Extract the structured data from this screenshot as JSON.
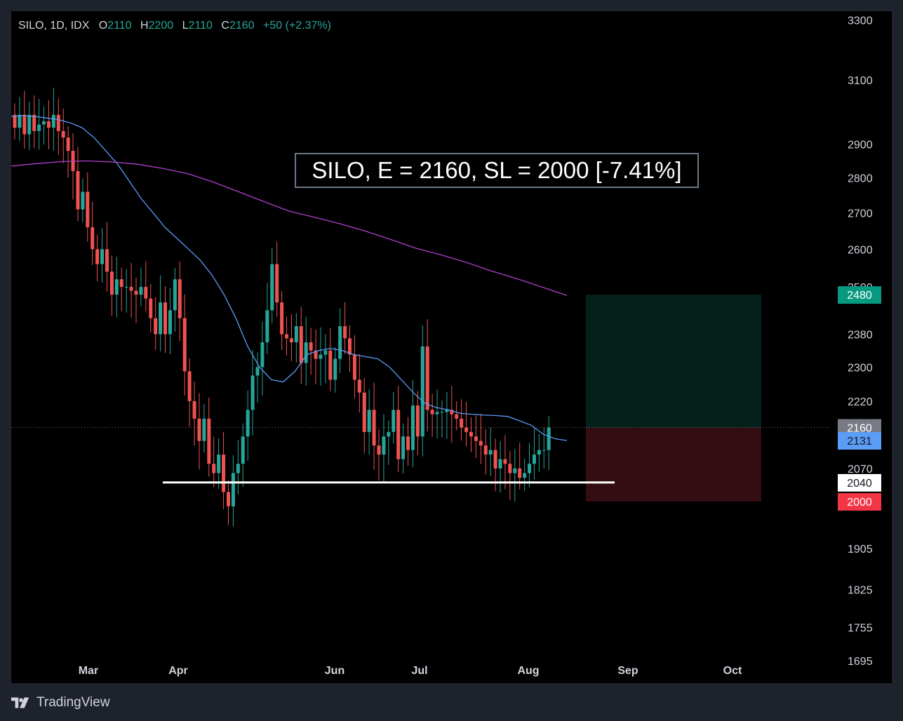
{
  "legend": {
    "symbol": "SILO, 1D, IDX",
    "open_label": "O",
    "open": "2110",
    "high_label": "H",
    "high": "2200",
    "low_label": "L",
    "low": "2110",
    "close_label": "C",
    "close": "2160",
    "change": "+50 (+2.37%)"
  },
  "annotation": "SILO, E = 2160, SL = 2000 [-7.41%]",
  "footer": {
    "brand": "TradingView",
    "logo_icon": "tradingview-logo-icon"
  },
  "colors": {
    "up": "#26a69a",
    "down": "#ef5350",
    "ma_fast": "#5b9cf6",
    "ma_slow": "#b03fd0",
    "target_zone": "#04201a",
    "stop_zone": "#320e12",
    "support_line": "#ffffff"
  },
  "chart_data": {
    "type": "candlestick",
    "scale": "log",
    "ylim": [
      1690,
      3330
    ],
    "yticks": [
      1695,
      1755,
      1825,
      1905,
      2070,
      2220,
      2300,
      2380,
      2500,
      2600,
      2700,
      2800,
      2900,
      3100,
      3300
    ],
    "x_tick_labels": [
      "Mar",
      "Apr",
      "Jun",
      "Jul",
      "Aug",
      "Sep",
      "Oct"
    ],
    "price_tags": [
      {
        "label": "2480",
        "value": 2480,
        "color": "#089981",
        "text_color": "#ffffff"
      },
      {
        "label": "2160",
        "value": 2160,
        "color": "#787b86",
        "text_color": "#ffffff"
      },
      {
        "label": "2131",
        "value": 2131,
        "color": "#5b9cf6",
        "text_color": "#131722"
      },
      {
        "label": "2040",
        "value": 2040,
        "color": "#ffffff",
        "text_color": "#131722"
      },
      {
        "label": "2000",
        "value": 2000,
        "color": "#f23645",
        "text_color": "#ffffff"
      }
    ],
    "entry": 2160,
    "stop_loss": 2000,
    "target": 2480,
    "support": 2040,
    "series": [
      {
        "name": "OHLC",
        "closes": [
          2950,
          2990,
          2930,
          2990,
          2940,
          2960,
          2970,
          2950,
          2990,
          2940,
          2920,
          2880,
          2820,
          2710,
          2760,
          2660,
          2600,
          2560,
          2600,
          2540,
          2480,
          2520,
          2500,
          2500,
          2490,
          2480,
          2500,
          2470,
          2420,
          2380,
          2460,
          2380,
          2440,
          2520,
          2420,
          2290,
          2220,
          2180,
          2130,
          2180,
          2080,
          2060,
          2100,
          2020,
          1990,
          2060,
          2080,
          2140,
          2200,
          2280,
          2300,
          2360,
          2440,
          2560,
          2460,
          2380,
          2370,
          2360,
          2400,
          2310,
          2360,
          2340,
          2320,
          2330,
          2340,
          2270,
          2320,
          2400,
          2370,
          2330,
          2270,
          2240,
          2150,
          2200,
          2120,
          2100,
          2140,
          2150,
          2200,
          2090,
          2140,
          2110,
          2210,
          2140,
          2350,
          2200,
          2190,
          2195,
          2195,
          2200,
          2190,
          2180,
          2160,
          2150,
          2140,
          2130,
          2120,
          2100,
          2110,
          2070,
          2090,
          2080,
          2060,
          2070,
          2050,
          2060,
          2080,
          2100,
          2110,
          2110,
          2160
        ]
      },
      {
        "name": "MA-fast",
        "values": [
          2985,
          2988,
          2985,
          2980,
          2975,
          2965,
          2950,
          2920,
          2880,
          2840,
          2790,
          2740,
          2700,
          2660,
          2630,
          2600,
          2570,
          2530,
          2480,
          2420,
          2350,
          2300,
          2270,
          2265,
          2290,
          2330,
          2340,
          2345,
          2340,
          2330,
          2325,
          2320,
          2300,
          2270,
          2240,
          2215,
          2205,
          2200,
          2192,
          2190,
          2188,
          2187,
          2185,
          2175,
          2165,
          2145,
          2135,
          2131
        ]
      },
      {
        "name": "MA-slow",
        "values": [
          2835,
          2842,
          2848,
          2850,
          2847,
          2840,
          2828,
          2812,
          2788,
          2760,
          2732,
          2705,
          2688,
          2670,
          2650,
          2627,
          2603,
          2585,
          2565,
          2542,
          2522,
          2500,
          2478
        ]
      }
    ]
  }
}
